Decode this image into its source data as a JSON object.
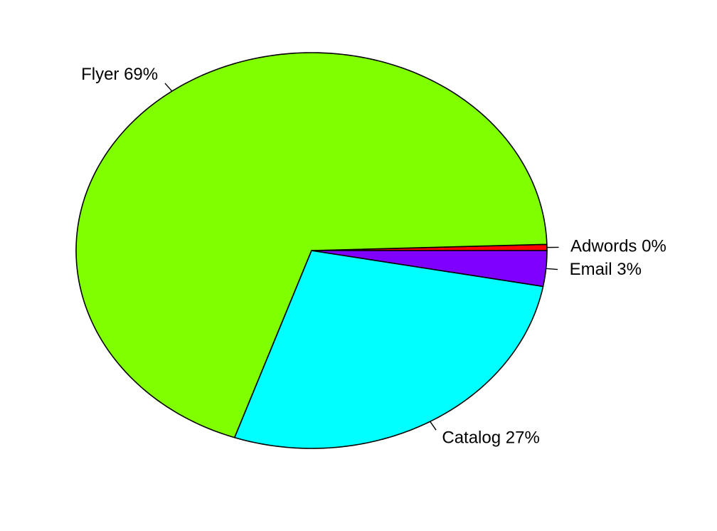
{
  "chart_data": {
    "type": "pie",
    "title": "",
    "slices": [
      {
        "label": "Adwords 0%",
        "category": "Adwords",
        "percent": 0.5,
        "color": "#FF0000"
      },
      {
        "label": "Flyer 69%",
        "category": "Flyer",
        "percent": 69.2,
        "color": "#80FF00"
      },
      {
        "label": "Catalog 27%",
        "category": "Catalog",
        "percent": 27.4,
        "color": "#00FFFF"
      },
      {
        "label": "Email 3%",
        "category": "Email",
        "percent": 2.9,
        "color": "#8000FF"
      }
    ],
    "direction": "counterclockwise",
    "start": "3 o'clock",
    "legend": "none"
  }
}
